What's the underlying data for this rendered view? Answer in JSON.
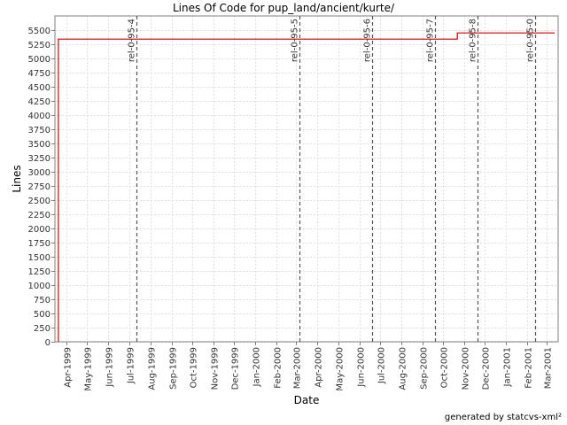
{
  "chart_data": {
    "type": "line",
    "title": "Lines Of Code for pup_land/ancient/kurte/",
    "xlabel": "Date",
    "ylabel": "Lines",
    "ylim": [
      0,
      5750
    ],
    "y_ticks": [
      0,
      250,
      500,
      750,
      1000,
      1250,
      1500,
      1750,
      2000,
      2250,
      2500,
      2750,
      3000,
      3250,
      3500,
      3750,
      4000,
      4250,
      4500,
      4750,
      5000,
      5250,
      5500
    ],
    "x_range": [
      "1999-03-15",
      "2001-03-18"
    ],
    "x_ticks": [
      {
        "label": "Apr-1999",
        "date": "1999-04-01"
      },
      {
        "label": "May-1999",
        "date": "1999-05-01"
      },
      {
        "label": "Jun-1999",
        "date": "1999-06-01"
      },
      {
        "label": "Jul-1999",
        "date": "1999-07-01"
      },
      {
        "label": "Aug-1999",
        "date": "1999-08-01"
      },
      {
        "label": "Sep-1999",
        "date": "1999-09-01"
      },
      {
        "label": "Oct-1999",
        "date": "1999-10-01"
      },
      {
        "label": "Nov-1999",
        "date": "1999-11-01"
      },
      {
        "label": "Dec-1999",
        "date": "1999-12-01"
      },
      {
        "label": "Jan-2000",
        "date": "2000-01-01"
      },
      {
        "label": "Feb-2000",
        "date": "2000-02-01"
      },
      {
        "label": "Mar-2000",
        "date": "2000-03-01"
      },
      {
        "label": "Apr-2000",
        "date": "2000-04-01"
      },
      {
        "label": "May-2000",
        "date": "2000-05-01"
      },
      {
        "label": "Jun-2000",
        "date": "2000-06-01"
      },
      {
        "label": "Jul-2000",
        "date": "2000-07-01"
      },
      {
        "label": "Aug-2000",
        "date": "2000-08-01"
      },
      {
        "label": "Sep-2000",
        "date": "2000-09-01"
      },
      {
        "label": "Oct-2000",
        "date": "2000-10-01"
      },
      {
        "label": "Nov-2000",
        "date": "2000-11-01"
      },
      {
        "label": "Dec-2000",
        "date": "2000-12-01"
      },
      {
        "label": "Jan-2001",
        "date": "2001-01-01"
      },
      {
        "label": "Feb-2001",
        "date": "2001-02-01"
      },
      {
        "label": "Mar-2001",
        "date": "2001-03-01"
      }
    ],
    "series": [
      {
        "color": "#cc0000",
        "points": [
          {
            "date": "1999-03-20",
            "value": 0
          },
          {
            "date": "1999-03-20",
            "value": 5340
          },
          {
            "date": "2000-10-22",
            "value": 5340
          },
          {
            "date": "2000-10-22",
            "value": 5450
          },
          {
            "date": "2001-03-13",
            "value": 5450
          }
        ]
      }
    ],
    "markers": [
      {
        "label": "rel-0-95-4",
        "date": "1999-07-12"
      },
      {
        "label": "rel-0-95-5",
        "date": "2000-03-06"
      },
      {
        "label": "rel-0-95-6",
        "date": "2000-06-19"
      },
      {
        "label": "rel-0-95-7",
        "date": "2000-09-20"
      },
      {
        "label": "rel-0-95-8",
        "date": "2000-11-21"
      },
      {
        "label": "rel-0-95-0",
        "date": "2001-02-12"
      }
    ],
    "grid": true,
    "legend": "none"
  },
  "footer": "generated by statcvs-xml²"
}
